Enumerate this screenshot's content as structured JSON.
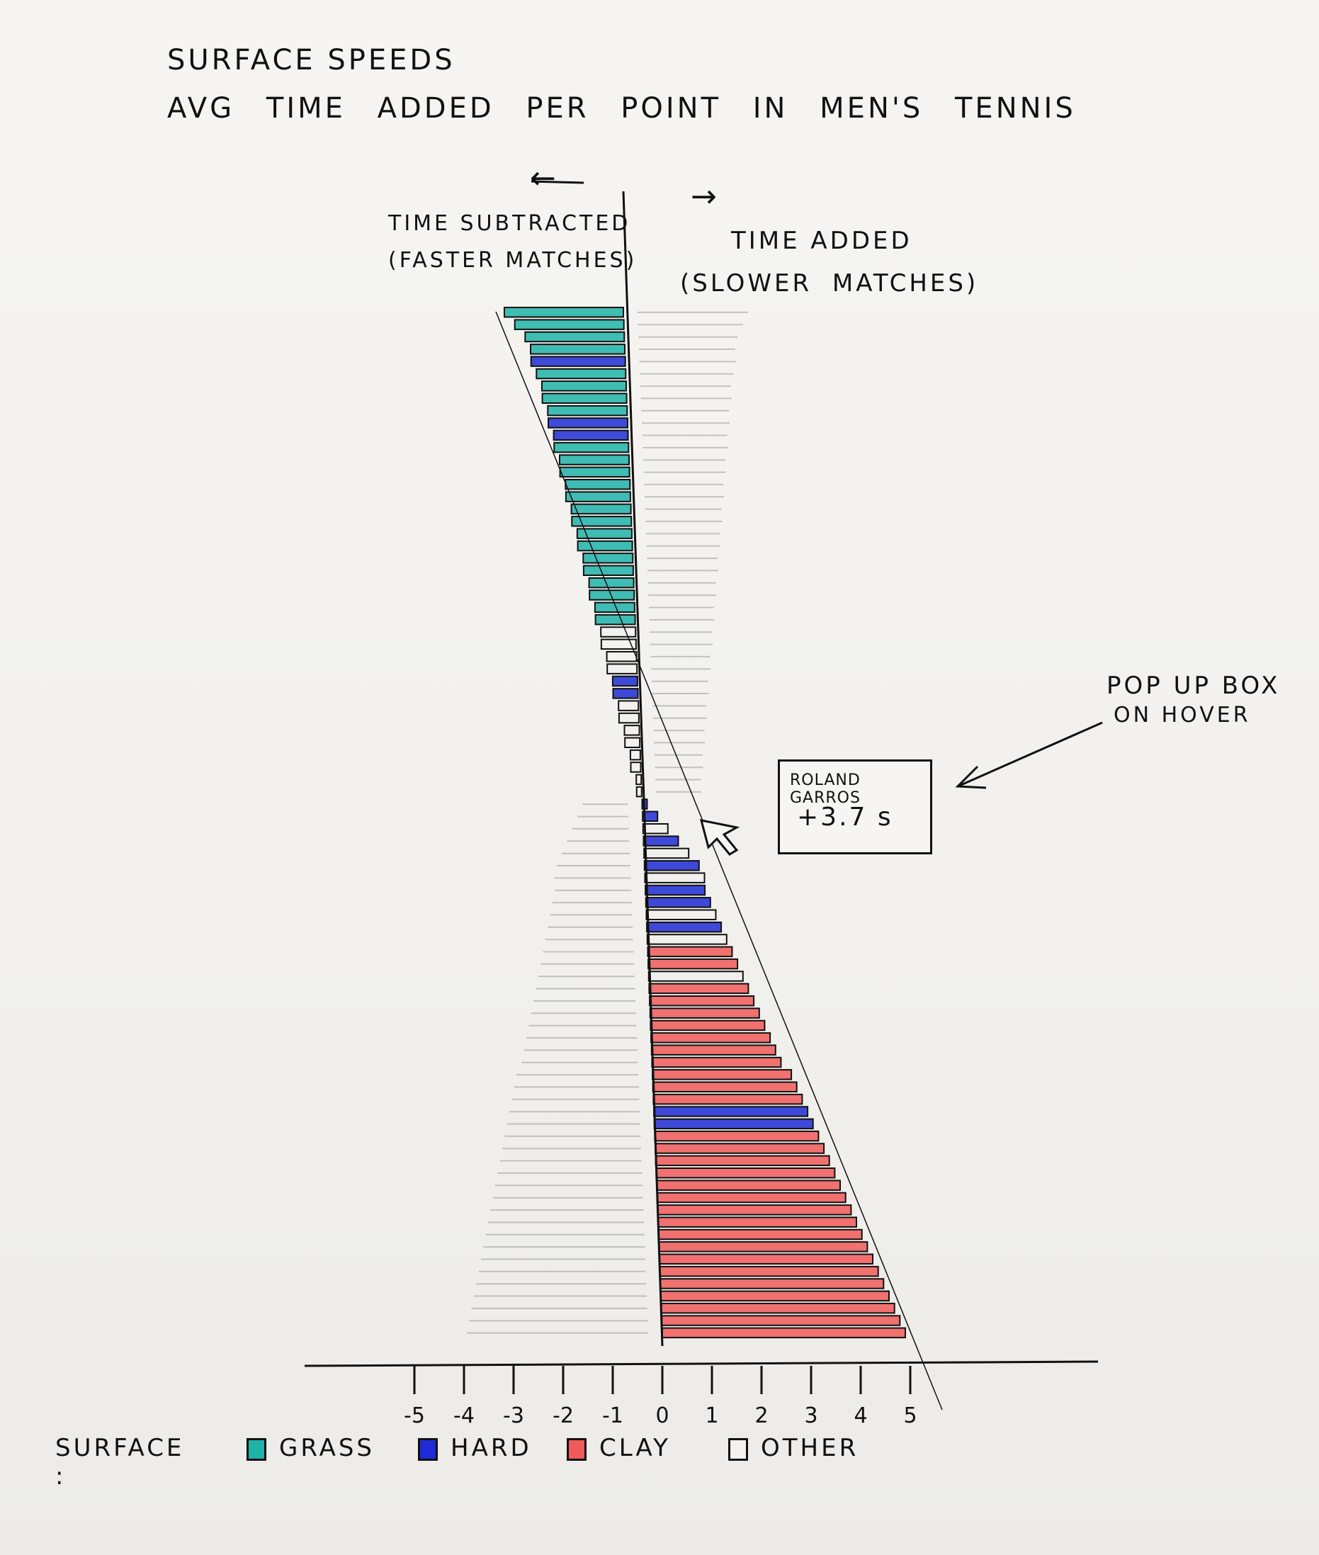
{
  "title": "SURFACE SPEEDS",
  "subtitle": "AVG TIME ADDED PER POINT IN MEN'S TENNIS",
  "arrows": {
    "left": "←",
    "right": "→"
  },
  "labels": {
    "subtracted_line1": "TIME SUBTRACTED",
    "subtracted_line2": "(FASTER MATCHES)",
    "added_line1": "TIME ADDED",
    "added_line2": "(SLOWER MATCHES)"
  },
  "annotation": {
    "line1": "POP UP BOX",
    "line2": "ON HOVER"
  },
  "tooltip": {
    "name": "ROLAND GARROS",
    "value": "+3.7 s"
  },
  "legend": {
    "title": "SURFACE :",
    "items": [
      {
        "label": "GRASS",
        "color": "#1fb3a8"
      },
      {
        "label": "HARD",
        "color": "#1f2bd6"
      },
      {
        "label": "CLAY",
        "color": "#f05a5a"
      },
      {
        "label": "OTHER",
        "color": "#f3f2ef"
      }
    ]
  },
  "chart_data": {
    "type": "bar",
    "orientation": "horizontal",
    "title": "SURFACE SPEEDS",
    "subtitle": "AVG TIME ADDED PER POINT IN MEN'S TENNIS",
    "xlabel": "",
    "ylabel": "",
    "xlim": [
      -5,
      5
    ],
    "x_ticks": [
      "-5",
      "-4",
      "-3",
      "-2",
      "-1",
      "0",
      "1",
      "2",
      "3",
      "4",
      "5"
    ],
    "grid": false,
    "legend_position": "bottom",
    "values": [
      -2.4,
      -2.2,
      -2.0,
      -1.9,
      -1.9,
      -1.8,
      -1.7,
      -1.7,
      -1.6,
      -1.6,
      -1.5,
      -1.5,
      -1.4,
      -1.4,
      -1.3,
      -1.3,
      -1.2,
      -1.2,
      -1.1,
      -1.1,
      -1.0,
      -1.0,
      -0.9,
      -0.9,
      -0.8,
      -0.8,
      -0.7,
      -0.7,
      -0.6,
      -0.6,
      -0.5,
      -0.5,
      -0.4,
      -0.4,
      -0.3,
      -0.3,
      -0.2,
      -0.2,
      -0.1,
      -0.1,
      0.1,
      0.3,
      0.5,
      0.7,
      0.9,
      1.1,
      1.2,
      1.2,
      1.3,
      1.4,
      1.5,
      1.6,
      1.7,
      1.8,
      1.9,
      2.0,
      2.1,
      2.2,
      2.3,
      2.4,
      2.5,
      2.6,
      2.8,
      2.9,
      3.0,
      3.1,
      3.2,
      3.3,
      3.4,
      3.5,
      3.6,
      3.7,
      3.8,
      3.9,
      4.0,
      4.1,
      4.2,
      4.3,
      4.4,
      4.5,
      4.6,
      4.7,
      4.8,
      4.9
    ],
    "surfaces": [
      "grass",
      "grass",
      "grass",
      "grass",
      "hard",
      "grass",
      "grass",
      "grass",
      "grass",
      "hard",
      "hard",
      "grass",
      "grass",
      "grass",
      "grass",
      "grass",
      "grass",
      "grass",
      "grass",
      "grass",
      "grass",
      "grass",
      "grass",
      "grass",
      "grass",
      "grass",
      "other",
      "other",
      "other",
      "other",
      "hard",
      "hard",
      "other",
      "other",
      "other",
      "other",
      "other",
      "other",
      "other",
      "other",
      "hard",
      "hard",
      "other",
      "hard",
      "other",
      "hard",
      "other",
      "hard",
      "hard",
      "other",
      "hard",
      "other",
      "clay",
      "clay",
      "other",
      "clay",
      "clay",
      "clay",
      "clay",
      "clay",
      "clay",
      "clay",
      "clay",
      "clay",
      "clay",
      "hard",
      "hard",
      "clay",
      "clay",
      "clay",
      "clay",
      "clay",
      "clay",
      "clay",
      "clay",
      "clay",
      "clay",
      "clay",
      "clay",
      "clay",
      "clay",
      "clay",
      "clay",
      "clay"
    ]
  }
}
